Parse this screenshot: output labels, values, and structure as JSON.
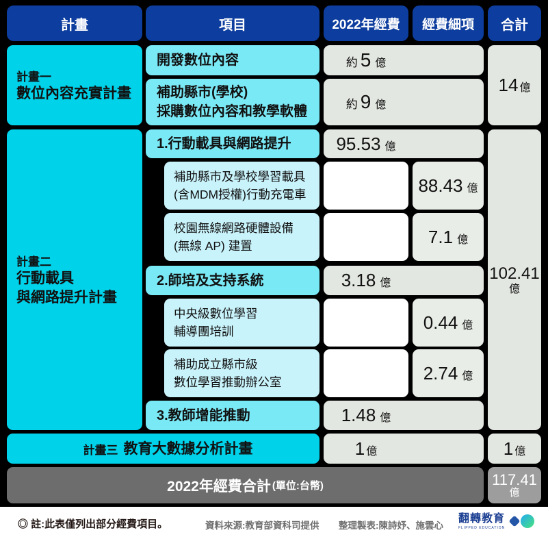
{
  "colors": {
    "header_blue": "#0d3d9e",
    "plan_cyan": "#00d2ea",
    "item_cyan": "#7ae9f6",
    "subitem_cyan": "#c9f3fb",
    "value_gray": "#e3e7e1",
    "detail_gray": "#e9ede7",
    "summary_dark_gray": "#6d6d6d",
    "grand_total_gray": "#9d9d9d",
    "background": "#000000",
    "logo_navy": "#1c3f93"
  },
  "header": {
    "plan": "計畫",
    "item": "項目",
    "budget": "2022年經費",
    "detail": "經費細項",
    "total": "合計"
  },
  "plan1": {
    "tag": "計畫一",
    "name": "數位內容充實計畫",
    "r1": {
      "item": "開發數位內容",
      "approx": "約",
      "num": "5",
      "unit": "億"
    },
    "r2": {
      "item1": "補助縣市(學校)",
      "item2": "採購數位內容和教學軟體",
      "approx": "約",
      "num": "9",
      "unit": "億"
    },
    "total": {
      "num": "14",
      "unit": "億"
    }
  },
  "plan2": {
    "tag": "計畫二",
    "name1": "行動載具",
    "name2": "與網路提升計畫",
    "item1": {
      "label": "1.行動載具與網路提升",
      "num": "95.53",
      "unit": "億"
    },
    "sub1": {
      "line1": "補助縣市及學校學習載具",
      "line2": "(含MDM授權)行動充電車",
      "num": "88.43",
      "unit": "億"
    },
    "sub2": {
      "line1": "校園無線網路硬體設備",
      "line2": "(無線 AP) 建置",
      "num": "7.1",
      "unit": "億"
    },
    "item2": {
      "label": "2.師培及支持系統",
      "num": "3.18",
      "unit": "億"
    },
    "sub3": {
      "line1": "中央級數位學習",
      "line2": "輔導團培訓",
      "num": "0.44",
      "unit": "億"
    },
    "sub4": {
      "line1": "補助成立縣市級",
      "line2": "數位學習推動辦公室",
      "num": "2.74",
      "unit": "億"
    },
    "item3": {
      "label": "3.教師增能推動",
      "num": "1.48",
      "unit": "億"
    },
    "total": {
      "num": "102.41",
      "unit": "億"
    }
  },
  "plan3": {
    "tag": "計畫三",
    "name": "教育大數據分析計畫",
    "num": "1",
    "unit": "億",
    "total": {
      "num": "1",
      "unit": "億"
    }
  },
  "summary": {
    "label": "2022年經費合計",
    "note": "(單位:台幣)",
    "total_num": "117.41",
    "total_unit": "億"
  },
  "footer": {
    "note": "◎ 註:此表僅列出部分經費項目。",
    "source": "資料來源:教育部資科司提供",
    "credit": "整理製表:陳詩妤、施雲心",
    "logo_title": "翻轉教育",
    "logo_subtitle": "FLIPPED EDUCATION"
  },
  "chart_data": {
    "type": "table",
    "title": "2022年經費合計 (單位:台幣)",
    "columns": [
      "計畫",
      "項目",
      "2022年經費",
      "經費細項",
      "合計"
    ],
    "rows": [
      [
        "計畫一 數位內容充實計畫",
        "開發數位內容",
        "約5億",
        "",
        "14億"
      ],
      [
        "計畫一 數位內容充實計畫",
        "補助縣市(學校)採購數位內容和教學軟體",
        "約9億",
        "",
        "14億"
      ],
      [
        "計畫二 行動載具與網路提升計畫",
        "1.行動載具與網路提升",
        "95.53億",
        "",
        "102.41億"
      ],
      [
        "計畫二 行動載具與網路提升計畫",
        "補助縣市及學校學習載具(含MDM授權)行動充電車",
        "",
        "88.43億",
        "102.41億"
      ],
      [
        "計畫二 行動載具與網路提升計畫",
        "校園無線網路硬體設備(無線 AP)建置",
        "",
        "7.1億",
        "102.41億"
      ],
      [
        "計畫二 行動載具與網路提升計畫",
        "2.師培及支持系統",
        "3.18億",
        "",
        "102.41億"
      ],
      [
        "計畫二 行動載具與網路提升計畫",
        "中央級數位學習輔導團培訓",
        "",
        "0.44億",
        "102.41億"
      ],
      [
        "計畫二 行動載具與網路提升計畫",
        "補助成立縣市級數位學習推動辦公室",
        "",
        "2.74億",
        "102.41億"
      ],
      [
        "計畫二 行動載具與網路提升計畫",
        "3.教師增能推動",
        "1.48億",
        "",
        "102.41億"
      ],
      [
        "計畫三 教育大數據分析計畫",
        "",
        "1億",
        "",
        "1億"
      ]
    ],
    "summary_row": {
      "label": "2022年經費合計(單位:台幣)",
      "value": "117.41億"
    },
    "note": "◎ 註:此表僅列出部分經費項目。"
  }
}
